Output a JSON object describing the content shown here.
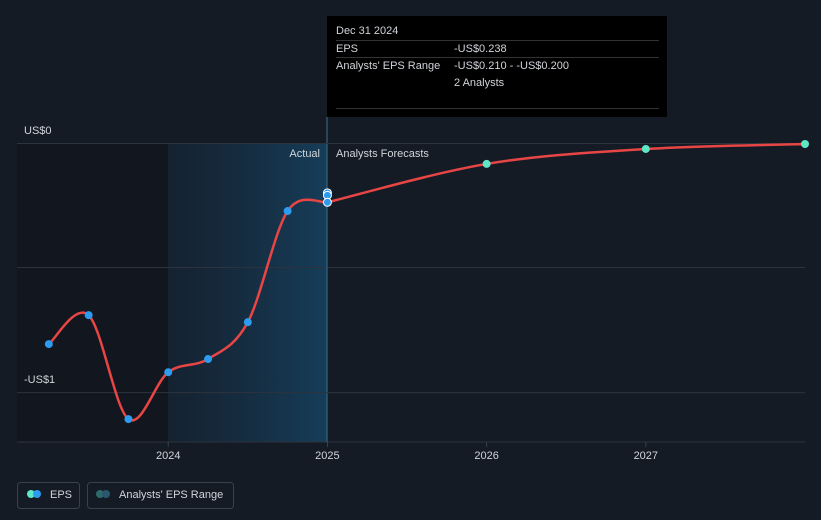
{
  "chart_data": {
    "type": "line",
    "xlim": [
      2023.05,
      2028.0
    ],
    "xticks": [
      2024,
      2025,
      2026,
      2027
    ],
    "ylim": [
      -1.2,
      0
    ],
    "yticks": [
      {
        "value": 0,
        "label": "US$0"
      },
      {
        "value": -1,
        "label": "-US$1"
      }
    ],
    "grid": true,
    "sections": [
      "Actual",
      "Analysts Forecasts"
    ],
    "series": [
      {
        "name": "EPS",
        "color": "#e84545",
        "point_color": "#2d9cf0",
        "x": [
          2023.25,
          2023.5,
          2023.75,
          2024.0,
          2024.25,
          2024.5,
          2024.75,
          2025.0
        ],
        "values": [
          -0.807,
          -0.691,
          -1.108,
          -0.92,
          -0.867,
          -0.719,
          -0.273,
          -0.238
        ]
      }
    ],
    "forecast": {
      "color": "#e84545",
      "point_color": "#5ee6c6",
      "x": [
        2026.0,
        2027.0,
        2028.0
      ],
      "values": [
        -0.084,
        -0.024,
        -0.004
      ]
    },
    "range": {
      "name": "Analysts' EPS Range",
      "color": "#2d9cf0",
      "x": [
        2025.0
      ],
      "low": [
        -0.21
      ],
      "high": [
        -0.2
      ]
    },
    "tooltip": {
      "date": "Dec 31 2024",
      "rows": [
        {
          "label": "EPS",
          "value": "-US$0.238"
        },
        {
          "label": "Analysts' EPS Range",
          "value": "-US$0.210 - -US$0.200"
        }
      ],
      "note": "2 Analysts"
    }
  }
}
